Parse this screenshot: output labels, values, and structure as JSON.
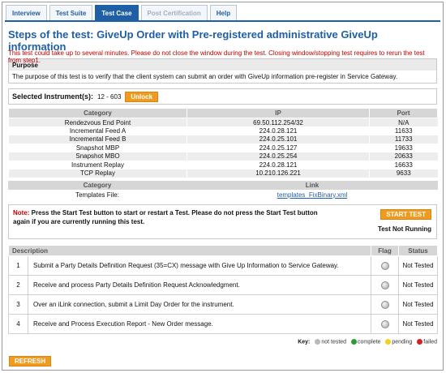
{
  "tabs": [
    {
      "label": "Interview",
      "state": "normal"
    },
    {
      "label": "Test Suite",
      "state": "normal"
    },
    {
      "label": "Test Case",
      "state": "active"
    },
    {
      "label": "Post Certification",
      "state": "disabled"
    },
    {
      "label": "Help",
      "state": "normal"
    }
  ],
  "title": "Steps of the test: GiveUp Order with Pre-registered administrative GiveUp information",
  "warning": "This test could take up to several minutes. Please do not close the window during the test. Closing window/stopping test requires to rerun the test from step1.",
  "purpose": {
    "heading": "Purpose",
    "text": "The purpose of this test is to verify that the client system can submit an order with GiveUp information pre-register in Service Gateway."
  },
  "instrument": {
    "label": "Selected Instrument(s):",
    "value": "12 - 603",
    "unlock_label": "Unlock"
  },
  "connections": {
    "headers": {
      "category": "Category",
      "ip": "IP",
      "port": "Port"
    },
    "rows": [
      {
        "category": "Rendezvous End Point",
        "ip": "69.50.112.254/32",
        "port": "N/A"
      },
      {
        "category": "Incremental Feed A",
        "ip": "224.0.28.121",
        "port": "11633"
      },
      {
        "category": "Incremental Feed B",
        "ip": "224.0.25.101",
        "port": "11733"
      },
      {
        "category": "Snapshot MBP",
        "ip": "224.0.25.127",
        "port": "19633"
      },
      {
        "category": "Snapshot MBO",
        "ip": "224.0.25.254",
        "port": "20633"
      },
      {
        "category": "Instrument Replay",
        "ip": "224.0.28.121",
        "port": "16633"
      },
      {
        "category": "TCP Replay",
        "ip": "10.210.126.221",
        "port": "9633"
      }
    ]
  },
  "templates": {
    "headers": {
      "category": "Category",
      "link": "Link"
    },
    "category": "Templates File:",
    "link_text": "templates_FixBinary.xml"
  },
  "note": {
    "label": "Note:",
    "text": " Press the Start Test button to start or restart a Test. Please do not press the Start Test button again if you are currently running this test.",
    "start_label": "START TEST",
    "status": "Test Not Running"
  },
  "steps": {
    "headers": {
      "description": "Description",
      "flag": "Flag",
      "status": "Status"
    },
    "rows": [
      {
        "num": "1",
        "description": "Submit a Party Details Definition Request (35=CX) message with Give Up Information to Service Gateway.",
        "status": "Not Tested"
      },
      {
        "num": "2",
        "description": "Receive and process Party Details Definition Request Acknowledgment.",
        "status": "Not Tested"
      },
      {
        "num": "3",
        "description": "Over an iLink connection, submit a Limit Day Order for the instrument.",
        "status": "Not Tested"
      },
      {
        "num": "4",
        "description": "Receive and Process Execution Report - New Order message.",
        "status": "Not Tested"
      }
    ]
  },
  "key": {
    "label": "Key:",
    "items": [
      {
        "label": "not tested",
        "color": "#b8b8b8"
      },
      {
        "label": "complete",
        "color": "#2e9b2e"
      },
      {
        "label": "pending",
        "color": "#f2d21a"
      },
      {
        "label": "failed",
        "color": "#d42020"
      }
    ]
  },
  "refresh_label": "REFRESH"
}
